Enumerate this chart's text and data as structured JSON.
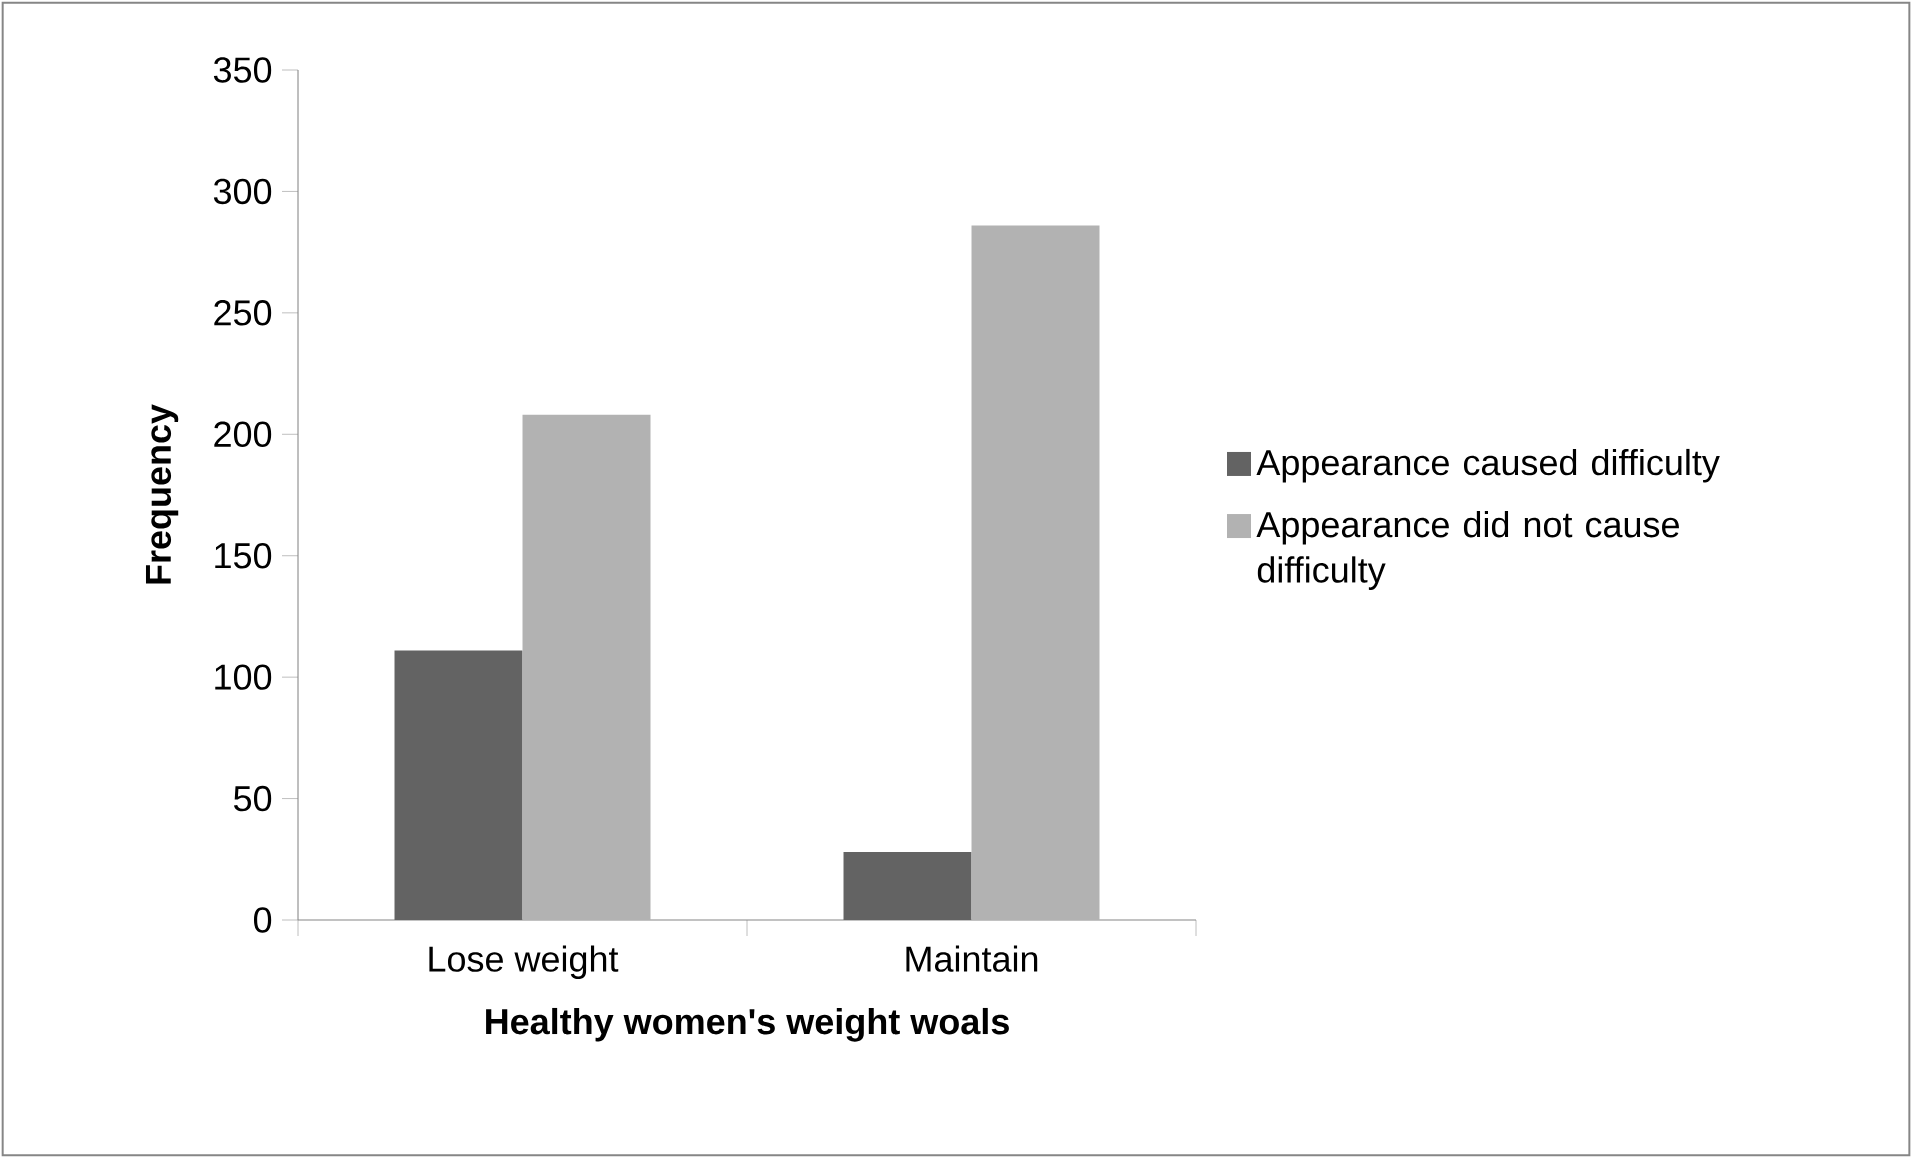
{
  "chart_data": {
    "type": "bar",
    "xlabel": "Healthy women's weight woals",
    "ylabel": "Frequency",
    "categories": [
      "Lose weight",
      "Maintain"
    ],
    "series": [
      {
        "name": "Appearance caused difficulty",
        "color": "#636363",
        "values": [
          111,
          28
        ]
      },
      {
        "name": "Appearance did not cause difficulty",
        "color": "#b2b2b2",
        "values": [
          208,
          286
        ]
      }
    ],
    "ylim": [
      0,
      350
    ],
    "yticks": [
      0,
      50,
      100,
      150,
      200,
      250,
      300,
      350
    ],
    "grid": false,
    "legend": "right"
  }
}
